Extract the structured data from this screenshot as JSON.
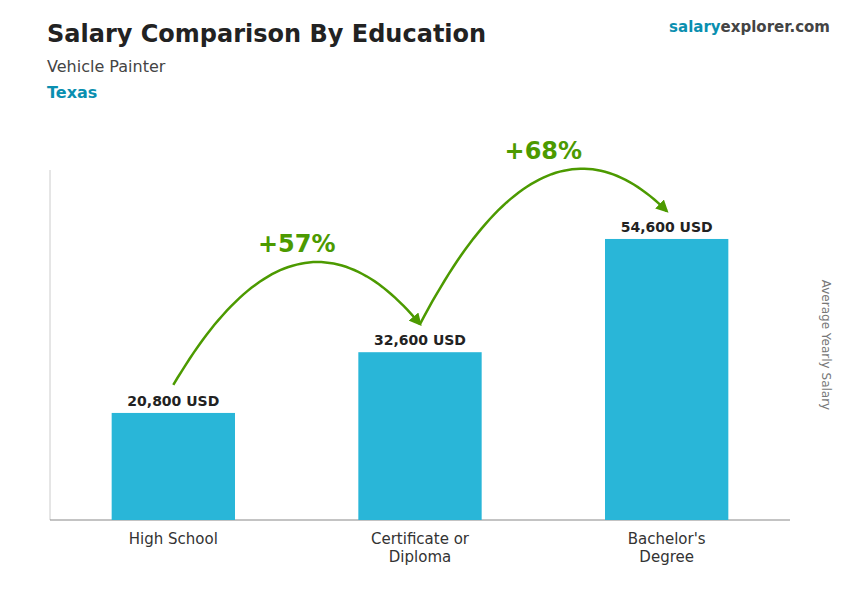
{
  "chart_data": {
    "type": "bar",
    "title": "Salary Comparison By Education",
    "subtitle": "Vehicle Painter",
    "y_label": "Average Yearly Salary",
    "annotations": [
      "Texas",
      "salary",
      "explorer.com"
    ],
    "categories": [
      "High School",
      "Certificate or\nDiploma",
      "Bachelor's\nDegree"
    ],
    "values": [
      20800,
      32600,
      54600
    ],
    "value_labels": [
      "20,800 USD",
      "32,600 USD",
      "54,600 USD"
    ],
    "data_labels": true,
    "change_labels": [
      "+57%",
      "+68%"
    ],
    "color": "#29b6d8",
    "ylim": [
      0,
      68000
    ],
    "tick_labels": "x",
    "grid": false
  }
}
